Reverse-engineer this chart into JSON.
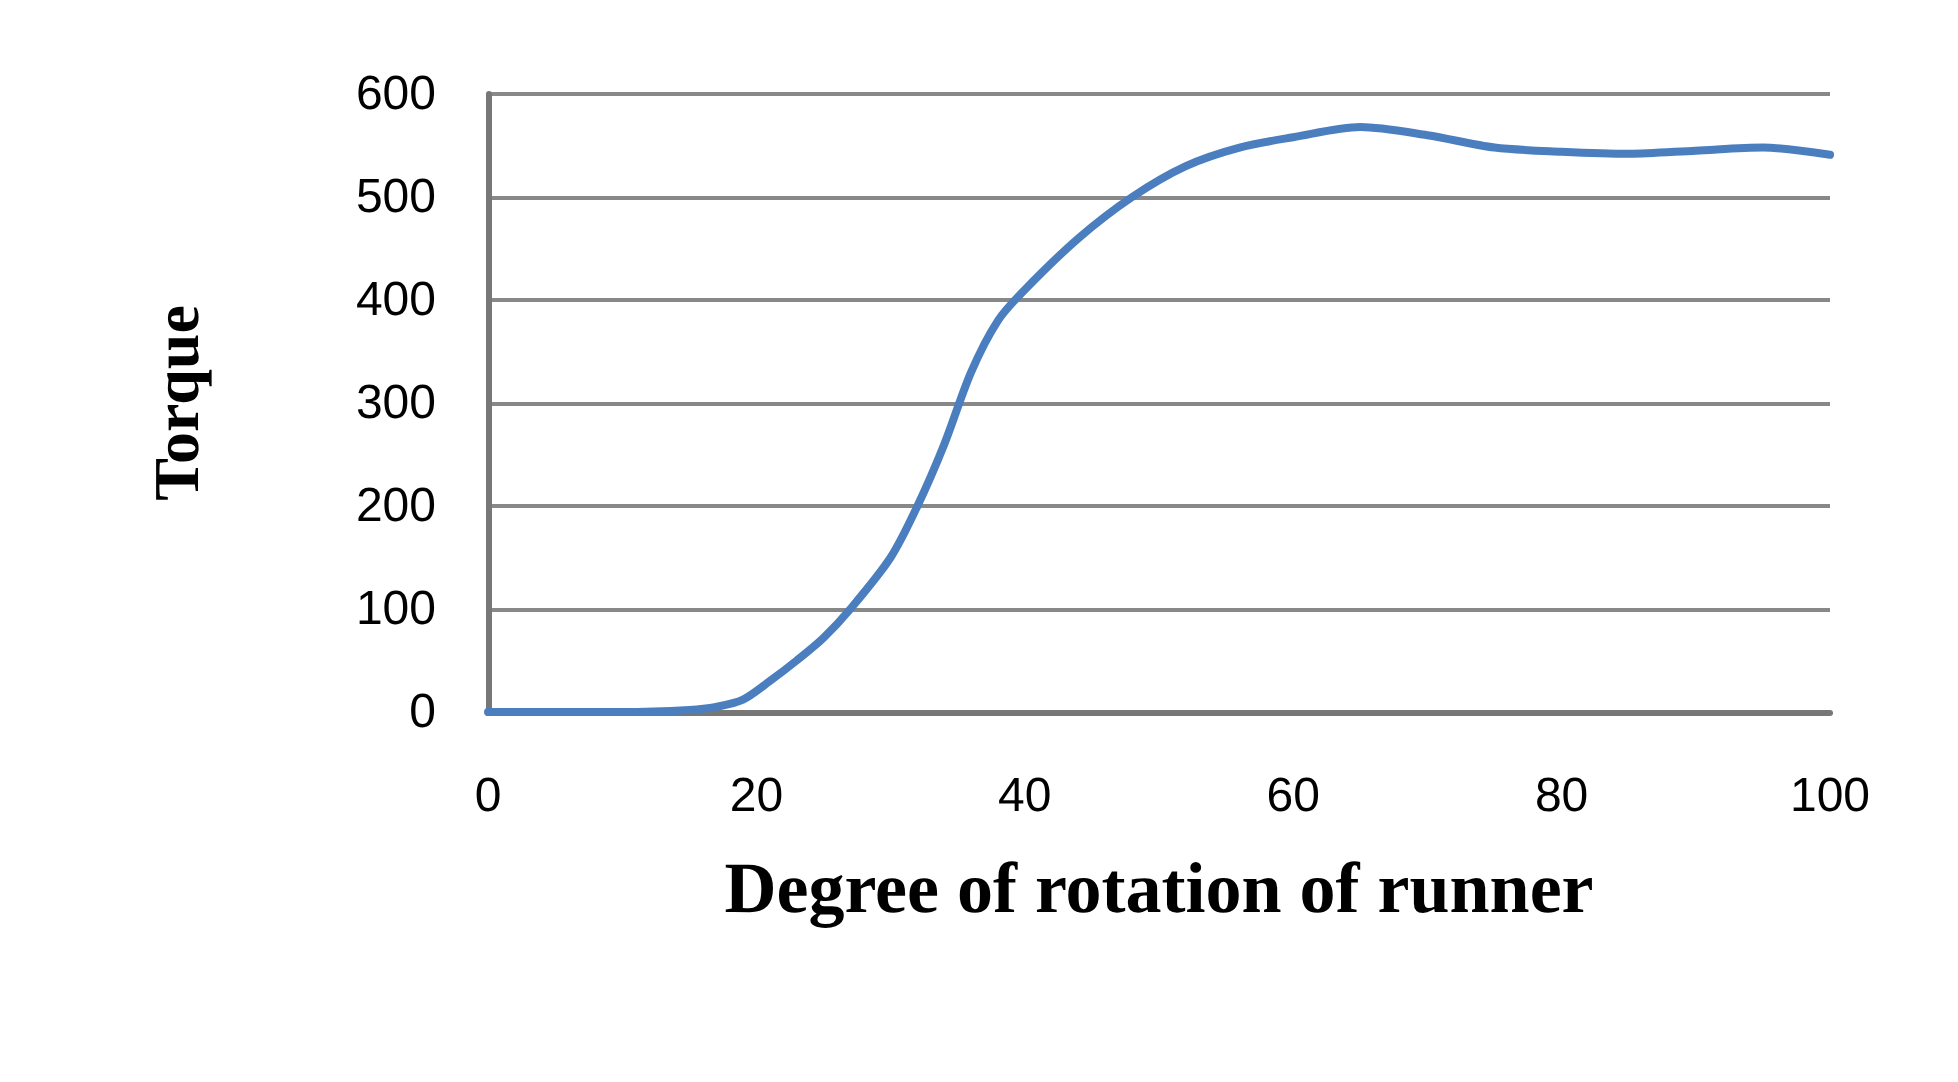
{
  "chart_data": {
    "type": "line",
    "xlabel": "Degree of rotation of runner",
    "ylabel": "Torque",
    "x": [
      0,
      5,
      10,
      15,
      17,
      19,
      21,
      23,
      25,
      27,
      30,
      32,
      34,
      36,
      38,
      40,
      44,
      48,
      52,
      56,
      60,
      65,
      70,
      75,
      80,
      85,
      90,
      95,
      100
    ],
    "series": [
      {
        "color": "#4a7ebf",
        "values": [
          0,
          0,
          0,
          2,
          5,
          12,
          30,
          50,
          72,
          100,
          150,
          200,
          260,
          330,
          380,
          410,
          460,
          500,
          530,
          548,
          558,
          568,
          560,
          548,
          544,
          542,
          545,
          548,
          541
        ]
      }
    ],
    "xlim": [
      0,
      100
    ],
    "xticks": [
      0,
      20,
      40,
      60,
      80,
      100
    ],
    "ylim": [
      0,
      600
    ],
    "yticks": [
      0,
      100,
      200,
      300,
      400,
      500,
      600
    ],
    "grid": "y",
    "marker": "none",
    "line_style": "solid"
  }
}
